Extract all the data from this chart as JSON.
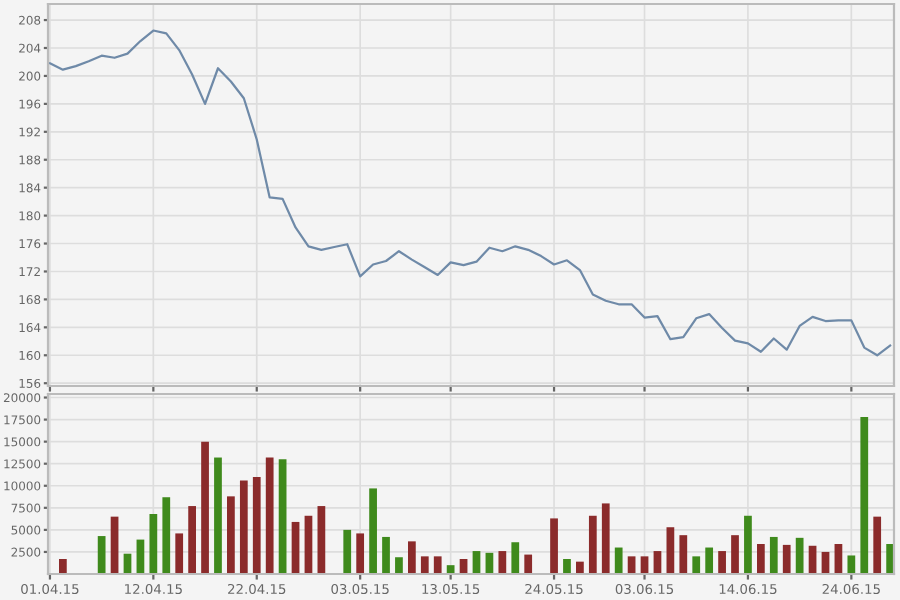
{
  "chart_data": [
    {
      "type": "line",
      "tick_labels": "y",
      "grid": true,
      "ylim": [
        155.6,
        210.3
      ],
      "yticks": [
        156,
        160,
        164,
        168,
        172,
        176,
        180,
        184,
        188,
        192,
        196,
        200,
        204,
        208
      ],
      "categories": [
        "01.04.15",
        null,
        null,
        null,
        null,
        null,
        null,
        null,
        "12.04.15",
        null,
        null,
        null,
        null,
        null,
        null,
        null,
        "22.04.15",
        null,
        null,
        null,
        null,
        null,
        null,
        null,
        "03.05.15",
        null,
        null,
        null,
        null,
        null,
        null,
        "13.05.15",
        null,
        null,
        null,
        null,
        null,
        null,
        null,
        "24.05.15",
        null,
        null,
        null,
        null,
        null,
        null,
        "03.06.15",
        null,
        null,
        null,
        null,
        null,
        null,
        null,
        "14.06.15",
        null,
        null,
        null,
        null,
        null,
        null,
        null,
        "24.06.15",
        null,
        null,
        null
      ],
      "series": [
        {
          "color": "#6f8aa8",
          "values": [
            201.8,
            200.9,
            201.4,
            202.1,
            202.9,
            202.6,
            203.2,
            205.0,
            206.5,
            206.1,
            203.7,
            200.2,
            196.0,
            201.1,
            199.2,
            196.8,
            190.9,
            182.6,
            182.4,
            178.3,
            175.6,
            175.1,
            175.5,
            175.9,
            171.3,
            173.0,
            173.5,
            174.9,
            173.7,
            172.6,
            171.5,
            173.3,
            172.9,
            173.4,
            175.4,
            174.9,
            175.6,
            175.1,
            174.2,
            173.0,
            173.6,
            172.2,
            168.7,
            167.8,
            167.3,
            167.3,
            165.4,
            165.6,
            162.3,
            162.6,
            165.3,
            165.9,
            163.9,
            162.1,
            161.7,
            160.5,
            162.4,
            160.8,
            164.2,
            165.5,
            164.9,
            165.0,
            165.0,
            161.1,
            160.0,
            161.4
          ]
        }
      ]
    },
    {
      "type": "bar",
      "grid": true,
      "ylim": [
        0,
        20400
      ],
      "yticks": [
        2500,
        5000,
        7500,
        10000,
        12500,
        15000,
        17500,
        20000
      ],
      "categories": [
        "01.04.15",
        null,
        null,
        null,
        null,
        null,
        null,
        null,
        "12.04.15",
        null,
        null,
        null,
        null,
        null,
        null,
        null,
        "22.04.15",
        null,
        null,
        null,
        null,
        null,
        null,
        null,
        "03.05.15",
        null,
        null,
        null,
        null,
        null,
        null,
        "13.05.15",
        null,
        null,
        null,
        null,
        null,
        null,
        null,
        "24.05.15",
        null,
        null,
        null,
        null,
        null,
        null,
        "03.06.15",
        null,
        null,
        null,
        null,
        null,
        null,
        null,
        "14.06.15",
        null,
        null,
        null,
        null,
        null,
        null,
        null,
        "24.06.15",
        null,
        null,
        null
      ],
      "values": [
        null,
        1700,
        null,
        null,
        4300,
        6500,
        2300,
        3900,
        6800,
        8700,
        4600,
        7700,
        15000,
        13200,
        8800,
        10600,
        11000,
        13200,
        13000,
        5900,
        6600,
        7700,
        null,
        5000,
        4600,
        9700,
        4200,
        1900,
        3700,
        2000,
        2000,
        1000,
        1700,
        2600,
        2400,
        2600,
        3600,
        2200,
        null,
        6300,
        1700,
        1400,
        6600,
        8000,
        3000,
        2000,
        2000,
        2600,
        5300,
        4400,
        2000,
        3000,
        2600,
        4400,
        6600,
        3400,
        4200,
        3300,
        4100,
        3200,
        2500,
        3400,
        2100,
        17800,
        6500,
        3400
      ],
      "colors": [
        "#8b2b2b",
        "#8b2b2b",
        "#8b2b2b",
        "#8b2b2b",
        "#3f8a1c",
        "#8b2b2b",
        "#3f8a1c",
        "#3f8a1c",
        "#3f8a1c",
        "#3f8a1c",
        "#8b2b2b",
        "#8b2b2b",
        "#8b2b2b",
        "#3f8a1c",
        "#8b2b2b",
        "#8b2b2b",
        "#8b2b2b",
        "#8b2b2b",
        "#3f8a1c",
        "#8b2b2b",
        "#8b2b2b",
        "#8b2b2b",
        "#8b2b2b",
        "#3f8a1c",
        "#8b2b2b",
        "#3f8a1c",
        "#3f8a1c",
        "#3f8a1c",
        "#8b2b2b",
        "#8b2b2b",
        "#8b2b2b",
        "#3f8a1c",
        "#8b2b2b",
        "#3f8a1c",
        "#3f8a1c",
        "#8b2b2b",
        "#3f8a1c",
        "#8b2b2b",
        "#8b2b2b",
        "#8b2b2b",
        "#3f8a1c",
        "#8b2b2b",
        "#8b2b2b",
        "#8b2b2b",
        "#3f8a1c",
        "#8b2b2b",
        "#8b2b2b",
        "#8b2b2b",
        "#8b2b2b",
        "#8b2b2b",
        "#3f8a1c",
        "#3f8a1c",
        "#8b2b2b",
        "#8b2b2b",
        "#3f8a1c",
        "#8b2b2b",
        "#3f8a1c",
        "#8b2b2b",
        "#3f8a1c",
        "#8b2b2b",
        "#8b2b2b",
        "#8b2b2b",
        "#3f8a1c",
        "#3f8a1c",
        "#8b2b2b",
        "#3f8a1c"
      ]
    }
  ]
}
